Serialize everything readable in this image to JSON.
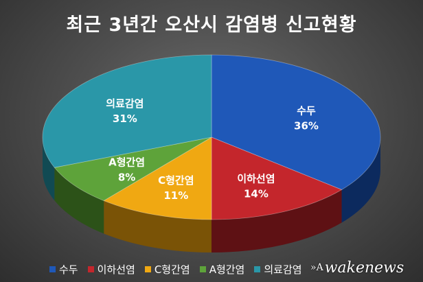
{
  "chart_data": {
    "type": "pie",
    "title": "최근 3년간 오산시 감염병 신고현황",
    "slices": [
      {
        "label": "수두",
        "value": 36,
        "display": "36%",
        "color": "#1f58b8",
        "side": "#0c2a5e"
      },
      {
        "label": "이하선염",
        "value": 14,
        "display": "14%",
        "color": "#c4262c",
        "side": "#5e1114"
      },
      {
        "label": "C형간염",
        "value": 11,
        "display": "11%",
        "color": "#f0a812",
        "side": "#7a5306"
      },
      {
        "label": "A형간염",
        "value": 8,
        "display": "8%",
        "color": "#5ea33a",
        "side": "#2c5218"
      },
      {
        "label": "의료감염",
        "value": 31,
        "display": "31%",
        "color": "#2a97a8",
        "side": "#114a53"
      }
    ],
    "legend_position": "bottom"
  },
  "watermark": {
    "text": "wakenews"
  }
}
